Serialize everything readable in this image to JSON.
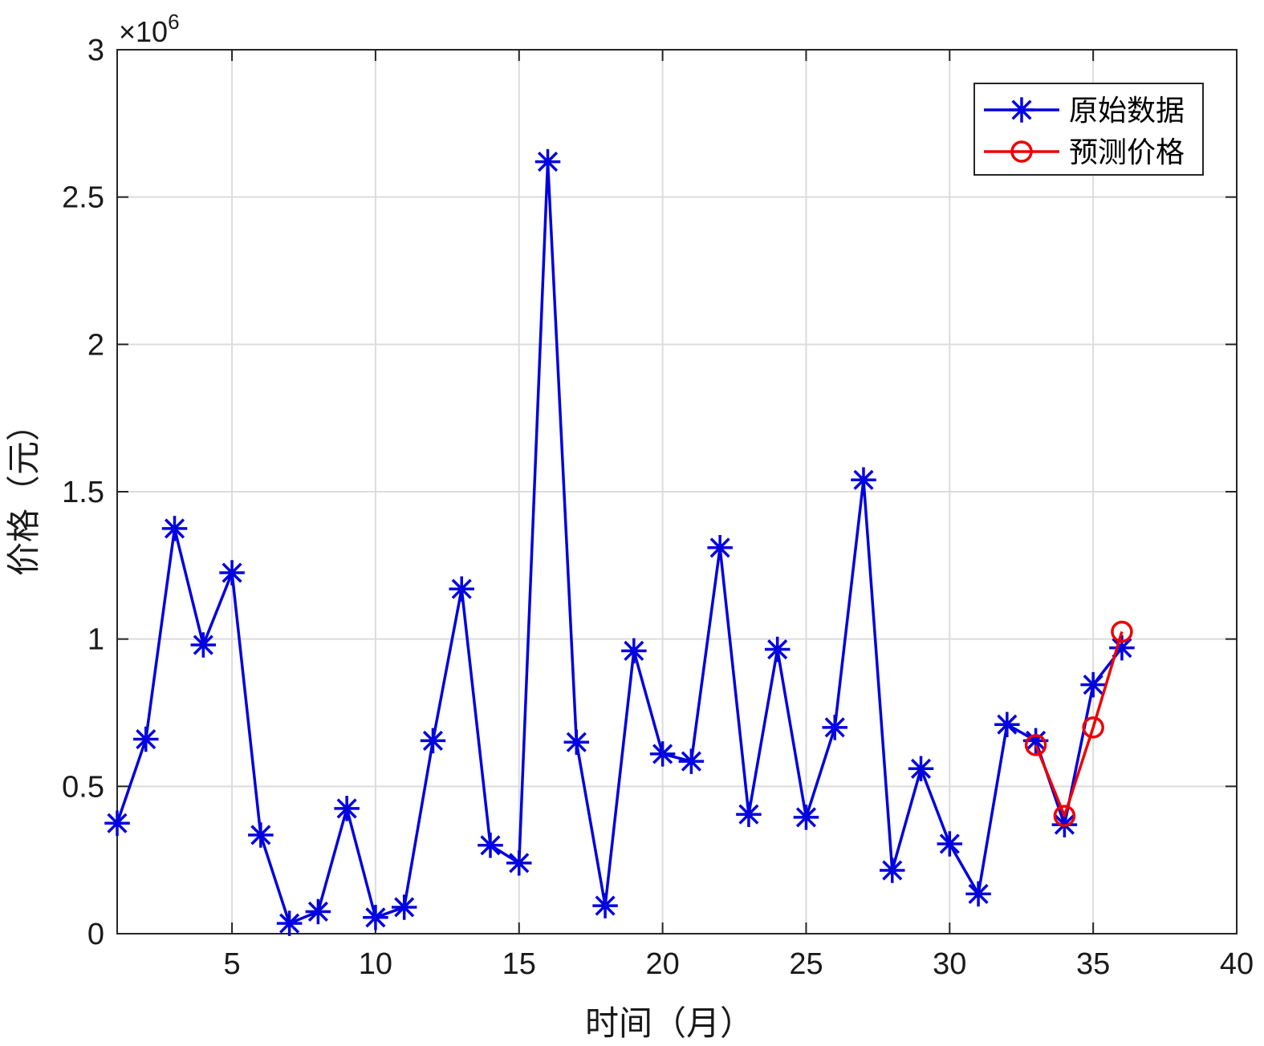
{
  "chart_data": {
    "type": "line",
    "title": "",
    "xlabel": "时间（月）",
    "ylabel": "价格（元）",
    "y_exponent_label": "×10",
    "y_exponent_power": "6",
    "xlim": [
      1,
      40
    ],
    "ylim": [
      0,
      3000000
    ],
    "xticks": [
      5,
      10,
      15,
      20,
      25,
      30,
      35,
      40
    ],
    "yticks": [
      0,
      500000,
      1000000,
      1500000,
      2000000,
      2500000,
      3000000
    ],
    "xtick_labels": [
      "5",
      "10",
      "15",
      "20",
      "25",
      "30",
      "35",
      "40"
    ],
    "ytick_labels": [
      "0",
      "0.5",
      "1",
      "1.5",
      "2",
      "2.5",
      "3"
    ],
    "grid": true,
    "legend_position": "top-right",
    "series": [
      {
        "name": "原始数据",
        "color": "#0000e0",
        "marker": "asterisk",
        "x": [
          1,
          2,
          3,
          4,
          5,
          6,
          7,
          8,
          9,
          10,
          11,
          12,
          13,
          14,
          15,
          16,
          17,
          18,
          19,
          20,
          21,
          22,
          23,
          24,
          25,
          26,
          27,
          28,
          29,
          30,
          31,
          32,
          33,
          34,
          35,
          36
        ],
        "y": [
          375000,
          660000,
          1375000,
          980000,
          1225000,
          335000,
          35000,
          75000,
          425000,
          55000,
          90000,
          655000,
          1170000,
          300000,
          240000,
          2620000,
          650000,
          95000,
          960000,
          610000,
          585000,
          1310000,
          405000,
          965000,
          395000,
          700000,
          1540000,
          215000,
          560000,
          305000,
          135000,
          710000,
          655000,
          370000,
          845000,
          970000
        ]
      },
      {
        "name": "预测价格",
        "color": "#ee0000",
        "marker": "circle",
        "x": [
          33,
          34,
          35,
          36
        ],
        "y": [
          640000,
          400000,
          700000,
          1025000
        ]
      }
    ]
  }
}
